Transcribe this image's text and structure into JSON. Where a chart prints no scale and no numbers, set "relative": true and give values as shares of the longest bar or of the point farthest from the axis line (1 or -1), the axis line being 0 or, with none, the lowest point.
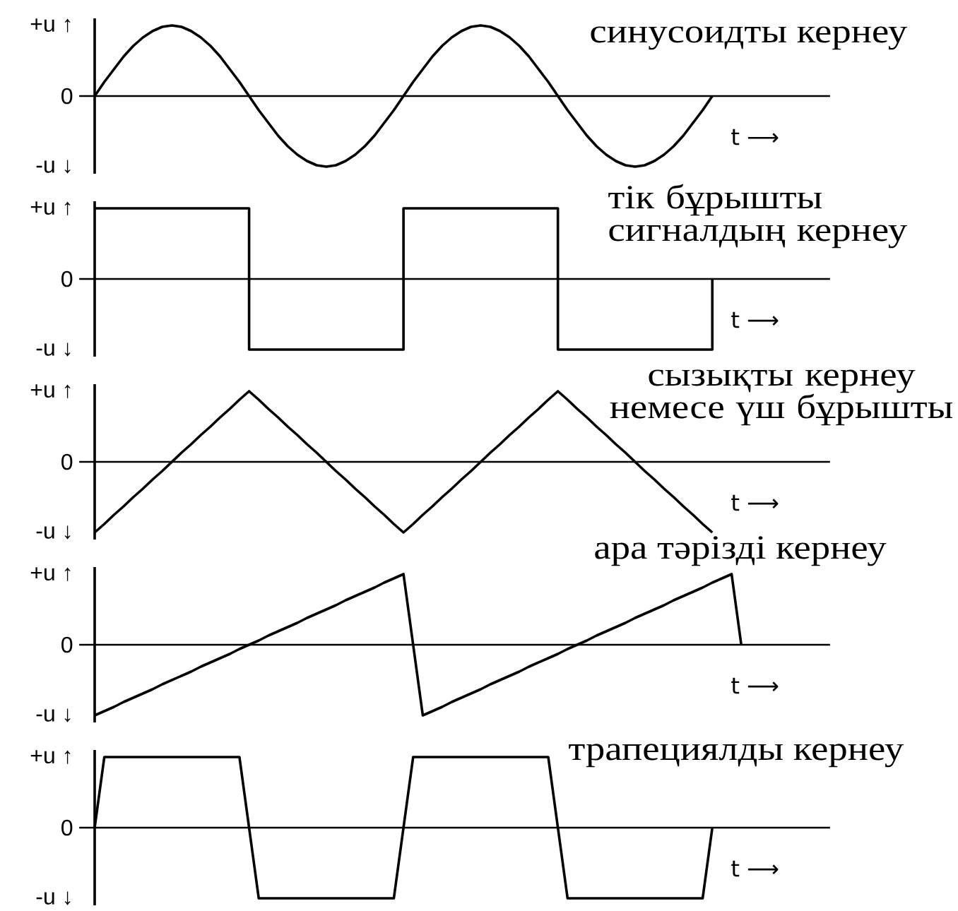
{
  "chart_data": [
    {
      "type": "line",
      "title": "синусоидты кернеу",
      "xlabel": "t ⟶",
      "color": "#000000",
      "relative": true,
      "annotations": [
        "+u ↑",
        "0",
        "-u ↓"
      ],
      "categories": [
        null,
        null,
        null,
        null,
        null,
        null,
        null,
        null,
        null,
        null,
        null,
        null,
        null,
        null,
        null,
        null,
        null,
        null,
        null,
        null,
        null,
        null,
        null,
        null,
        null,
        null,
        null,
        null,
        null,
        null,
        null,
        null,
        null,
        null,
        null,
        null,
        null,
        null,
        null,
        null,
        null,
        null,
        null,
        null,
        null,
        null,
        null,
        null,
        null,
        null,
        null,
        null,
        null,
        null,
        null,
        null,
        null,
        null,
        null,
        null,
        null,
        null,
        null,
        null,
        null
      ],
      "values": [
        0,
        0.2,
        0.38,
        0.56,
        0.71,
        0.83,
        0.92,
        0.98,
        1,
        0.98,
        0.92,
        0.83,
        0.71,
        0.56,
        0.38,
        0.2,
        0,
        -0.2,
        -0.38,
        -0.56,
        -0.71,
        -0.83,
        -0.92,
        -0.98,
        -1,
        -0.98,
        -0.92,
        -0.83,
        -0.71,
        -0.56,
        -0.38,
        -0.2,
        0,
        0.2,
        0.38,
        0.56,
        0.71,
        0.83,
        0.92,
        0.98,
        1,
        0.98,
        0.92,
        0.83,
        0.71,
        0.56,
        0.38,
        0.2,
        0,
        -0.2,
        -0.38,
        -0.56,
        -0.71,
        -0.83,
        -0.92,
        -0.98,
        -1,
        -0.98,
        -0.92,
        -0.83,
        -0.71,
        -0.56,
        -0.38,
        -0.2,
        0
      ]
    },
    {
      "type": "step",
      "title": "тік бұрышты сигналдың кернеу",
      "xlabel": "t ⟶",
      "color": "#000000",
      "relative": true,
      "annotations": [
        "+u ↑",
        "0",
        "-u ↓"
      ],
      "categories": [
        null,
        null,
        null,
        null,
        null,
        null,
        null,
        null,
        null,
        null,
        null,
        null,
        null,
        null,
        null,
        null,
        null,
        null,
        null,
        null,
        null,
        null,
        null,
        null,
        null,
        null,
        null,
        null,
        null,
        null,
        null,
        null,
        null,
        null,
        null,
        null,
        null,
        null,
        null,
        null,
        null,
        null,
        null,
        null,
        null,
        null,
        null,
        null,
        null,
        null,
        null,
        null,
        null,
        null,
        null,
        null,
        null,
        null,
        null,
        null,
        null,
        null,
        null,
        null,
        null
      ],
      "values": [
        1,
        1,
        1,
        1,
        1,
        1,
        1,
        1,
        1,
        1,
        1,
        1,
        1,
        1,
        1,
        1,
        -1,
        -1,
        -1,
        -1,
        -1,
        -1,
        -1,
        -1,
        -1,
        -1,
        -1,
        -1,
        -1,
        -1,
        -1,
        -1,
        1,
        1,
        1,
        1,
        1,
        1,
        1,
        1,
        1,
        1,
        1,
        1,
        1,
        1,
        1,
        1,
        -1,
        -1,
        -1,
        -1,
        -1,
        -1,
        -1,
        -1,
        -1,
        -1,
        -1,
        -1,
        -1,
        -1,
        -1,
        -1,
        0
      ]
    },
    {
      "type": "line",
      "title": "сызықты кернеу немесе үш бұрышты",
      "xlabel": "t ⟶",
      "color": "#000000",
      "relative": true,
      "annotations": [
        "+u ↑",
        "0",
        "-u ↓"
      ],
      "categories": [
        null,
        null,
        null,
        null,
        null,
        null,
        null,
        null,
        null,
        null,
        null,
        null,
        null,
        null,
        null,
        null,
        null,
        null,
        null,
        null,
        null,
        null,
        null,
        null,
        null,
        null,
        null,
        null,
        null,
        null,
        null,
        null,
        null,
        null,
        null,
        null,
        null,
        null,
        null,
        null,
        null,
        null,
        null,
        null,
        null,
        null,
        null,
        null,
        null,
        null,
        null,
        null,
        null,
        null,
        null,
        null,
        null,
        null,
        null,
        null,
        null,
        null,
        null,
        null,
        null
      ],
      "values": [
        -1,
        -0.88,
        -0.75,
        -0.63,
        -0.5,
        -0.38,
        -0.25,
        -0.13,
        0,
        0.13,
        0.25,
        0.38,
        0.5,
        0.63,
        0.75,
        0.88,
        1,
        0.88,
        0.75,
        0.63,
        0.5,
        0.38,
        0.25,
        0.13,
        0,
        -0.13,
        -0.25,
        -0.38,
        -0.5,
        -0.63,
        -0.75,
        -0.88,
        -1,
        -0.88,
        -0.75,
        -0.63,
        -0.5,
        -0.38,
        -0.25,
        -0.13,
        0,
        0.13,
        0.25,
        0.38,
        0.5,
        0.63,
        0.75,
        0.88,
        1,
        0.88,
        0.75,
        0.63,
        0.5,
        0.38,
        0.25,
        0.13,
        0,
        -0.13,
        -0.25,
        -0.38,
        -0.5,
        -0.63,
        -0.75,
        -0.88,
        -1
      ]
    },
    {
      "type": "line",
      "title": "ара тәрізді кернеу",
      "xlabel": "t ⟶",
      "color": "#000000",
      "relative": true,
      "annotations": [
        "+u ↑",
        "0",
        "-u ↓"
      ],
      "categories": [
        null,
        null,
        null,
        null,
        null,
        null,
        null,
        null,
        null,
        null,
        null,
        null,
        null,
        null,
        null,
        null,
        null,
        null,
        null,
        null,
        null,
        null,
        null,
        null,
        null,
        null,
        null,
        null,
        null,
        null,
        null,
        null,
        null,
        null,
        null,
        null,
        null,
        null,
        null,
        null,
        null,
        null,
        null,
        null,
        null,
        null,
        null,
        null,
        null,
        null,
        null,
        null,
        null,
        null,
        null,
        null,
        null,
        null,
        null,
        null,
        null,
        null,
        null,
        null,
        null,
        null,
        null,
        null
      ],
      "values": [
        -1,
        -0.94,
        -0.88,
        -0.81,
        -0.75,
        -0.69,
        -0.63,
        -0.56,
        -0.5,
        -0.44,
        -0.38,
        -0.31,
        -0.25,
        -0.19,
        -0.13,
        -0.06,
        0,
        0.06,
        0.13,
        0.19,
        0.25,
        0.31,
        0.38,
        0.44,
        0.5,
        0.56,
        0.63,
        0.69,
        0.75,
        0.81,
        0.88,
        0.94,
        1,
        0,
        -1,
        -0.94,
        -0.88,
        -0.81,
        -0.75,
        -0.69,
        -0.63,
        -0.56,
        -0.5,
        -0.44,
        -0.38,
        -0.31,
        -0.25,
        -0.19,
        -0.13,
        -0.06,
        0,
        0.06,
        0.13,
        0.19,
        0.25,
        0.31,
        0.38,
        0.44,
        0.5,
        0.56,
        0.63,
        0.69,
        0.75,
        0.81,
        0.88,
        0.94,
        1,
        0
      ]
    },
    {
      "type": "line",
      "title": "трапециялды кернеу",
      "xlabel": "t ⟶",
      "color": "#000000",
      "relative": true,
      "annotations": [
        "+u ↑",
        "0",
        "-u ↓"
      ],
      "categories": [
        null,
        null,
        null,
        null,
        null,
        null,
        null,
        null,
        null,
        null,
        null,
        null,
        null,
        null,
        null,
        null,
        null,
        null,
        null,
        null,
        null,
        null,
        null,
        null,
        null,
        null,
        null,
        null,
        null,
        null,
        null,
        null,
        null,
        null,
        null,
        null,
        null,
        null,
        null,
        null,
        null,
        null,
        null,
        null,
        null,
        null,
        null,
        null,
        null,
        null,
        null,
        null,
        null,
        null,
        null,
        null,
        null,
        null,
        null,
        null,
        null,
        null,
        null,
        null,
        null
      ],
      "values": [
        0,
        1,
        1,
        1,
        1,
        1,
        1,
        1,
        1,
        1,
        1,
        1,
        1,
        1,
        1,
        1,
        0,
        -1,
        -1,
        -1,
        -1,
        -1,
        -1,
        -1,
        -1,
        -1,
        -1,
        -1,
        -1,
        -1,
        -1,
        -1,
        0,
        1,
        1,
        1,
        1,
        1,
        1,
        1,
        1,
        1,
        1,
        1,
        1,
        1,
        1,
        1,
        0,
        -1,
        -1,
        -1,
        -1,
        -1,
        -1,
        -1,
        -1,
        -1,
        -1,
        -1,
        -1,
        -1,
        -1,
        -1,
        0
      ]
    }
  ]
}
